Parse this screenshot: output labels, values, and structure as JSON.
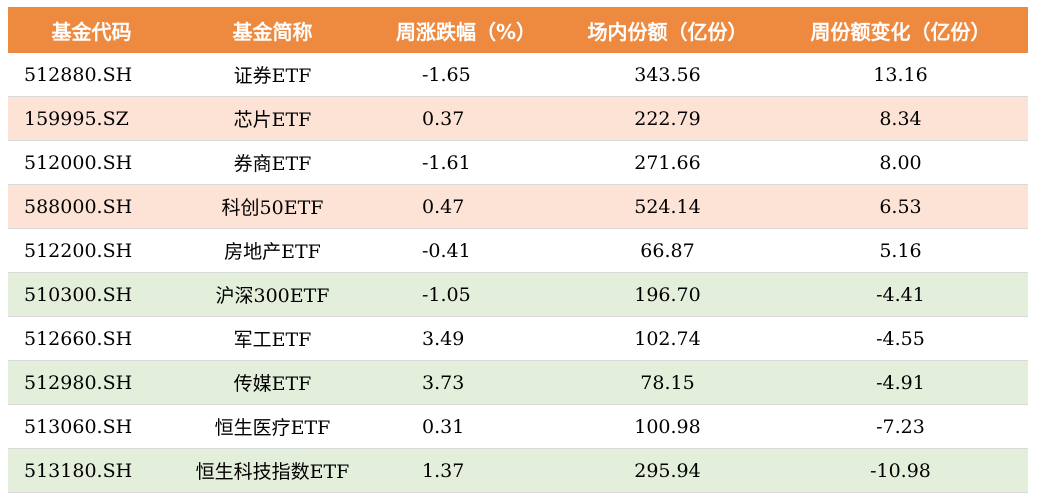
{
  "table": {
    "headers": [
      "基金代码",
      "基金简称",
      "周涨跌幅（%）",
      "场内份额（亿份）",
      "周份额变化（亿份）"
    ],
    "rows": [
      {
        "code": "512880.SH",
        "name": "证券ETF",
        "weekly_change": "-1.65",
        "shares": "343.56",
        "share_change": "13.16",
        "style": "white"
      },
      {
        "code": "159995.SZ",
        "name": "芯片ETF",
        "weekly_change": "0.37",
        "shares": "222.79",
        "share_change": "8.34",
        "style": "pink"
      },
      {
        "code": "512000.SH",
        "name": "券商ETF",
        "weekly_change": "-1.61",
        "shares": "271.66",
        "share_change": "8.00",
        "style": "white"
      },
      {
        "code": "588000.SH",
        "name": "科创50ETF",
        "weekly_change": "0.47",
        "shares": "524.14",
        "share_change": "6.53",
        "style": "pink"
      },
      {
        "code": "512200.SH",
        "name": "房地产ETF",
        "weekly_change": "-0.41",
        "shares": "66.87",
        "share_change": "5.16",
        "style": "white"
      },
      {
        "code": "510300.SH",
        "name": "沪深300ETF",
        "weekly_change": "-1.05",
        "shares": "196.70",
        "share_change": "-4.41",
        "style": "green"
      },
      {
        "code": "512660.SH",
        "name": "军工ETF",
        "weekly_change": "3.49",
        "shares": "102.74",
        "share_change": "-4.55",
        "style": "white"
      },
      {
        "code": "512980.SH",
        "name": "传媒ETF",
        "weekly_change": "3.73",
        "shares": "78.15",
        "share_change": "-4.91",
        "style": "green"
      },
      {
        "code": "513060.SH",
        "name": "恒生医疗ETF",
        "weekly_change": "0.31",
        "shares": "100.98",
        "share_change": "-7.23",
        "style": "white"
      },
      {
        "code": "513180.SH",
        "name": "恒生科技指数ETF",
        "weekly_change": "1.37",
        "shares": "295.94",
        "share_change": "-10.98",
        "style": "green"
      }
    ]
  },
  "colors": {
    "header_bg": "#ee8a3f",
    "header_text": "#ffffff",
    "row_pink": "#fce3d6",
    "row_green": "#e3efda",
    "row_white": "#ffffff"
  }
}
